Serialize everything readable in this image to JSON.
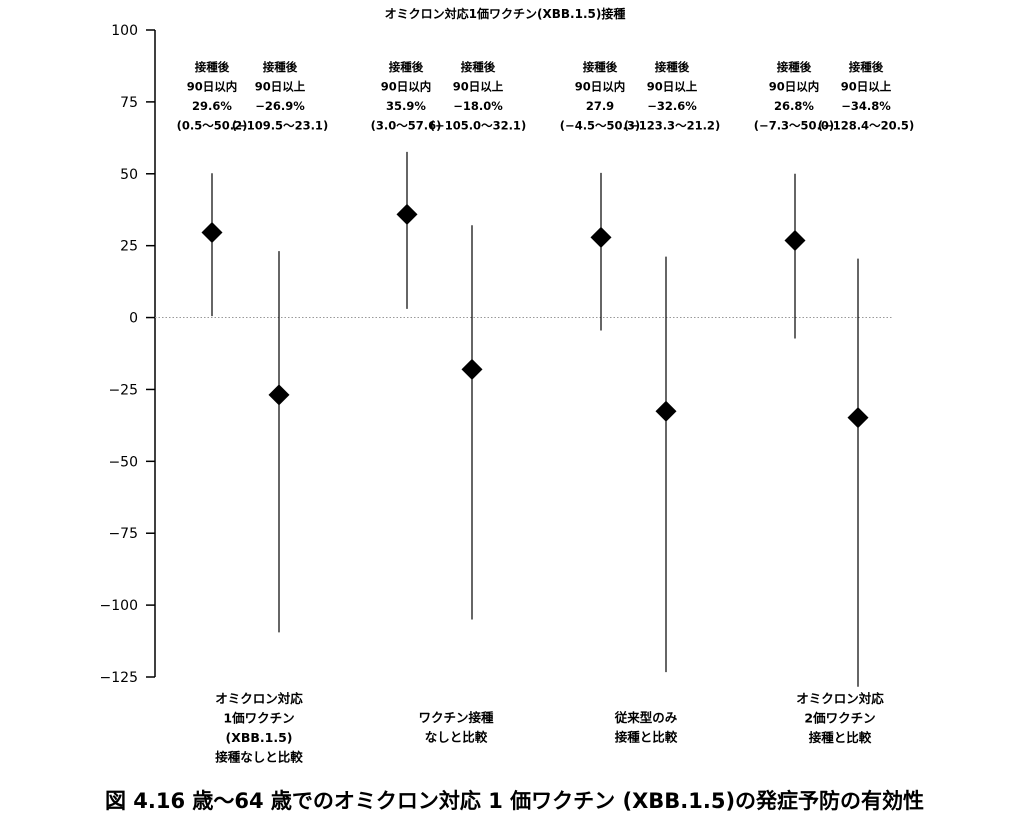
{
  "caption": "図 4.16 歳～64 歳でのオミクロン対応 1 価ワクチン (XBB.1.5)の発症予防の有効性",
  "chart_data": {
    "type": "scatter",
    "title": "オミクロン対応1価ワクチン(XBB.1.5)接種",
    "xlabel": "",
    "ylabel": "",
    "ylim": [
      -125,
      100
    ],
    "yticks": [
      100,
      75,
      50,
      25,
      0,
      -25,
      -50,
      -75,
      -100,
      -125
    ],
    "ytick_labels": [
      "100",
      "75",
      "50",
      "25",
      "0",
      "−25",
      "−50",
      "−75",
      "−100",
      "−125"
    ],
    "reference_line": 0,
    "grid": false,
    "groups": [
      {
        "label_lines": [
          "オミクロン対応",
          "1価ワクチン",
          "(XBB.1.5)",
          "接種なしと比較"
        ],
        "points": [
          {
            "period_lines": [
              "接種後",
              "90日以内"
            ],
            "estimate": 29.6,
            "lower": 0.5,
            "upper": 50.2,
            "value_text": "29.6%",
            "ci_text": "(0.5～50.2)"
          },
          {
            "period_lines": [
              "接種後",
              "90日以上"
            ],
            "estimate": -26.9,
            "lower": -109.5,
            "upper": 23.1,
            "value_text": "−26.9%",
            "ci_text": "(−109.5～23.1)"
          }
        ]
      },
      {
        "label_lines": [
          "ワクチン接種",
          "なしと比較"
        ],
        "points": [
          {
            "period_lines": [
              "接種後",
              "90日以内"
            ],
            "estimate": 35.9,
            "lower": 3.0,
            "upper": 57.6,
            "value_text": "35.9%",
            "ci_text": "(3.0～57.6)"
          },
          {
            "period_lines": [
              "接種後",
              "90日以上"
            ],
            "estimate": -18.0,
            "lower": -105.0,
            "upper": 32.1,
            "value_text": "−18.0%",
            "ci_text": "(−105.0～32.1)"
          }
        ]
      },
      {
        "label_lines": [
          "従来型のみ",
          "接種と比較"
        ],
        "points": [
          {
            "period_lines": [
              "接種後",
              "90日以内"
            ],
            "estimate": 27.9,
            "lower": -4.5,
            "upper": 50.3,
            "value_text": "27.9",
            "ci_text": "(−4.5～50.3)"
          },
          {
            "period_lines": [
              "接種後",
              "90日以上"
            ],
            "estimate": -32.6,
            "lower": -123.3,
            "upper": 21.2,
            "value_text": "−32.6%",
            "ci_text": "(−123.3～21.2)"
          }
        ]
      },
      {
        "label_lines": [
          "オミクロン対応",
          "2価ワクチン",
          "接種と比較"
        ],
        "points": [
          {
            "period_lines": [
              "接種後",
              "90日以内"
            ],
            "estimate": 26.8,
            "lower": -7.3,
            "upper": 50.0,
            "value_text": "26.8%",
            "ci_text": "(−7.3～50.0)"
          },
          {
            "period_lines": [
              "接種後",
              "90日以上"
            ],
            "estimate": -34.8,
            "lower": -128.4,
            "upper": 20.5,
            "value_text": "−34.8%",
            "ci_text": "(−128.4～20.5)"
          }
        ]
      }
    ]
  }
}
